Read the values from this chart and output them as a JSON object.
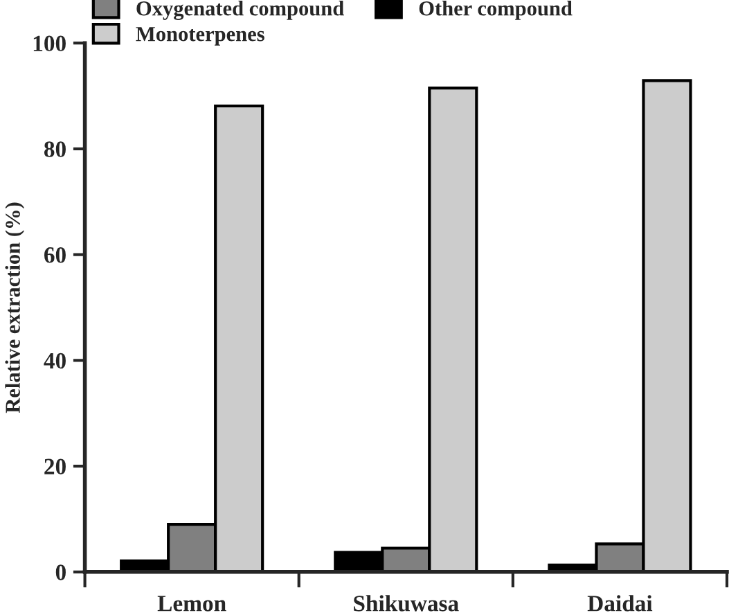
{
  "chart_data": {
    "type": "bar",
    "ylabel": "Relative extraction (%)",
    "categories": [
      "Lemon",
      "Shikuwasa",
      "Daidai"
    ],
    "series": [
      {
        "name": "Other compound",
        "color": "#000000",
        "values": [
          2.1,
          3.7,
          1.3
        ]
      },
      {
        "name": "Oxygenated compound",
        "color": "#808080",
        "values": [
          9.0,
          4.5,
          5.3
        ]
      },
      {
        "name": "Monoterpenes",
        "color": "#cccccc",
        "values": [
          88.1,
          91.5,
          92.9
        ]
      }
    ],
    "ylim": [
      0,
      100
    ],
    "yticks": [
      0,
      20,
      40,
      60,
      80,
      100
    ],
    "grid": false,
    "legend": "top"
  }
}
